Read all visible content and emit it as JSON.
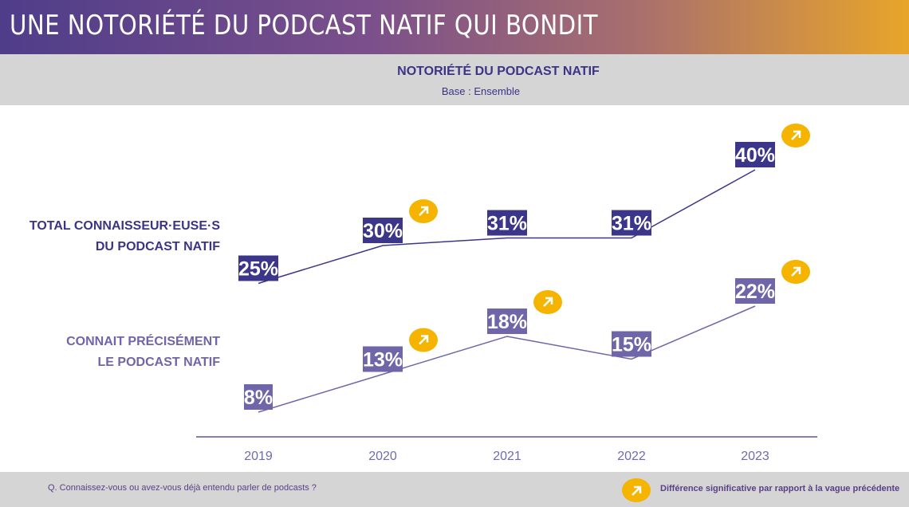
{
  "header": {
    "title": "UNE NOTORIÉTÉ DU PODCAST NATIF QUI BONDIT"
  },
  "chart_data": {
    "type": "line",
    "title": "NOTORIÉTÉ DU PODCAST NATIF",
    "subtitle": "Base : Ensemble",
    "categories": [
      "2019",
      "2020",
      "2021",
      "2022",
      "2023"
    ],
    "series": [
      {
        "name": "TOTAL CONNAISSEUR·EUSE·S DU PODCAST NATIF",
        "name_lines": [
          "TOTAL CONNAISSEUR·EUSE·S",
          "DU PODCAST NATIF"
        ],
        "values": [
          25,
          30,
          31,
          31,
          40
        ],
        "labels": [
          "25%",
          "30%",
          "31%",
          "31%",
          "40%"
        ],
        "significant_increase": [
          false,
          true,
          false,
          false,
          true
        ],
        "color": "#3b3689"
      },
      {
        "name": "CONNAIT PRÉCISÉMENT LE PODCAST NATIF",
        "name_lines": [
          "CONNAIT PRÉCISÉMENT",
          "LE PODCAST NATIF"
        ],
        "values": [
          8,
          13,
          18,
          15,
          22
        ],
        "labels": [
          "8%",
          "13%",
          "18%",
          "15%",
          "22%"
        ],
        "significant_increase": [
          false,
          true,
          true,
          false,
          true
        ],
        "color": "#6e66a8"
      }
    ],
    "grid": false
  },
  "footer": {
    "question": "Q. Connaissez-vous ou avez-vous déjà entendu parler de podcasts ?",
    "legend": "Différence significative par rapport à la vague précédente",
    "badge_color": "#f5b400",
    "badge_icon": "arrow-up-right-icon"
  }
}
